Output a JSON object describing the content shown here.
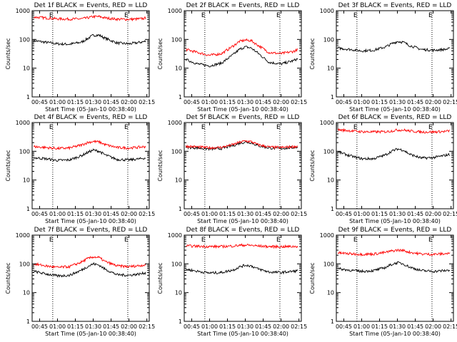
{
  "figure": {
    "xlabel": "Start Time (05-Jan-10 00:38:40)",
    "ylabel": "Counts/sec",
    "x_tick_labels": [
      "00:45",
      "01:00",
      "01:15",
      "01:30",
      "01:45",
      "02:00",
      "02:15"
    ],
    "y_tick_labels": [
      "1",
      "10",
      "100",
      "1000"
    ],
    "marker_label": "E",
    "colors": {
      "events": "#000000",
      "lld": "#ff0000"
    }
  },
  "chart_data": [
    {
      "type": "line",
      "title": "Det 1f BLACK = Events, RED = LLD",
      "x_range_minutes": [
        38.7,
        137
      ],
      "ylim": [
        1,
        1000
      ],
      "yscale": "log",
      "grid": false,
      "x": [
        40,
        50,
        60,
        70,
        80,
        85,
        90,
        95,
        100,
        110,
        120,
        130,
        135
      ],
      "series": [
        {
          "name": "Events",
          "color": "#000000",
          "values": [
            90,
            80,
            70,
            68,
            80,
            105,
            140,
            140,
            110,
            75,
            70,
            80,
            88
          ]
        },
        {
          "name": "LLD",
          "color": "#ff0000",
          "values": [
            600,
            560,
            520,
            510,
            520,
            560,
            620,
            620,
            560,
            505,
            500,
            520,
            560
          ]
        }
      ],
      "markers": [
        {
          "label": "E",
          "x": 56
        },
        {
          "label": "E",
          "x": 119
        }
      ]
    },
    {
      "type": "line",
      "title": "Det 2f BLACK = Events, RED = LLD",
      "x_range_minutes": [
        38.7,
        137
      ],
      "ylim": [
        1,
        1000
      ],
      "yscale": "log",
      "grid": false,
      "x": [
        40,
        50,
        60,
        70,
        80,
        85,
        90,
        95,
        100,
        110,
        120,
        130,
        135
      ],
      "series": [
        {
          "name": "Events",
          "color": "#000000",
          "values": [
            20,
            14,
            12,
            15,
            30,
            45,
            55,
            50,
            35,
            16,
            14,
            18,
            22
          ]
        },
        {
          "name": "LLD",
          "color": "#ff0000",
          "values": [
            45,
            35,
            28,
            32,
            60,
            85,
            95,
            90,
            65,
            35,
            32,
            38,
            45
          ]
        }
      ],
      "markers": [
        {
          "label": "E",
          "x": 56
        },
        {
          "label": "E",
          "x": 119
        }
      ]
    },
    {
      "type": "line",
      "title": "Det 3f BLACK = Events, RED = LLD",
      "x_range_minutes": [
        38.7,
        137
      ],
      "ylim": [
        1,
        1000
      ],
      "yscale": "log",
      "grid": false,
      "x": [
        40,
        50,
        60,
        70,
        80,
        85,
        90,
        95,
        100,
        110,
        120,
        130,
        135
      ],
      "series": [
        {
          "name": "Events",
          "color": "#000000",
          "values": [
            50,
            45,
            40,
            42,
            55,
            70,
            85,
            80,
            62,
            45,
            42,
            45,
            48
          ]
        }
      ],
      "markers": [
        {
          "label": "E",
          "x": 56
        },
        {
          "label": "E",
          "x": 119
        }
      ]
    },
    {
      "type": "line",
      "title": "Det 4f BLACK = Events, RED = LLD",
      "x_range_minutes": [
        38.7,
        137
      ],
      "ylim": [
        1,
        1000
      ],
      "yscale": "log",
      "grid": false,
      "x": [
        40,
        50,
        60,
        70,
        80,
        85,
        90,
        95,
        100,
        110,
        120,
        130,
        135
      ],
      "series": [
        {
          "name": "Events",
          "color": "#000000",
          "values": [
            60,
            55,
            48,
            50,
            70,
            90,
            110,
            100,
            75,
            52,
            50,
            55,
            60
          ]
        },
        {
          "name": "LLD",
          "color": "#ff0000",
          "values": [
            145,
            135,
            125,
            130,
            165,
            200,
            220,
            210,
            170,
            135,
            130,
            140,
            148
          ]
        }
      ],
      "markers": [
        {
          "label": "E",
          "x": 56
        },
        {
          "label": "E",
          "x": 119
        }
      ]
    },
    {
      "type": "line",
      "title": "Det 5f BLACK = Events, RED = LLD",
      "x_range_minutes": [
        38.7,
        137
      ],
      "ylim": [
        1,
        1000
      ],
      "yscale": "log",
      "grid": false,
      "x": [
        40,
        50,
        60,
        70,
        80,
        85,
        90,
        95,
        100,
        110,
        120,
        130,
        135
      ],
      "series": [
        {
          "name": "Events",
          "color": "#000000",
          "values": [
            140,
            130,
            120,
            125,
            160,
            190,
            210,
            200,
            160,
            130,
            125,
            135,
            140
          ]
        },
        {
          "name": "LLD",
          "color": "#ff0000",
          "values": [
            150,
            142,
            132,
            137,
            172,
            205,
            228,
            216,
            172,
            140,
            135,
            145,
            152
          ]
        }
      ],
      "markers": [
        {
          "label": "E",
          "x": 56
        },
        {
          "label": "E",
          "x": 119
        }
      ]
    },
    {
      "type": "line",
      "title": "Det 6f BLACK = Events, RED = LLD",
      "x_range_minutes": [
        38.7,
        137
      ],
      "ylim": [
        1,
        1000
      ],
      "yscale": "log",
      "grid": false,
      "x": [
        40,
        50,
        60,
        70,
        80,
        85,
        90,
        95,
        100,
        110,
        120,
        130,
        135
      ],
      "series": [
        {
          "name": "Events",
          "color": "#000000",
          "values": [
            95,
            70,
            55,
            55,
            75,
            100,
            120,
            110,
            80,
            58,
            60,
            72,
            80
          ]
        },
        {
          "name": "LLD",
          "color": "#ff0000",
          "values": [
            560,
            520,
            480,
            470,
            480,
            510,
            550,
            550,
            510,
            470,
            470,
            490,
            520
          ]
        }
      ],
      "markers": [
        {
          "label": "E",
          "x": 56
        },
        {
          "label": "E",
          "x": 119
        }
      ]
    },
    {
      "type": "line",
      "title": "Det 7f BLACK = Events, RED = LLD",
      "x_range_minutes": [
        38.7,
        137
      ],
      "ylim": [
        1,
        1000
      ],
      "yscale": "log",
      "grid": false,
      "x": [
        40,
        50,
        60,
        70,
        80,
        85,
        90,
        95,
        100,
        110,
        120,
        130,
        135
      ],
      "series": [
        {
          "name": "Events",
          "color": "#000000",
          "values": [
            55,
            45,
            38,
            40,
            60,
            80,
            100,
            90,
            65,
            42,
            40,
            45,
            50
          ]
        },
        {
          "name": "LLD",
          "color": "#ff0000",
          "values": [
            100,
            85,
            75,
            80,
            115,
            150,
            175,
            165,
            120,
            85,
            80,
            88,
            95
          ]
        }
      ],
      "markers": [
        {
          "label": "E",
          "x": 56
        },
        {
          "label": "E",
          "x": 119
        }
      ]
    },
    {
      "type": "line",
      "title": "Det 8f BLACK = Events, RED = LLD",
      "x_range_minutes": [
        38.7,
        137
      ],
      "ylim": [
        1,
        1000
      ],
      "yscale": "log",
      "grid": false,
      "x": [
        40,
        50,
        60,
        70,
        80,
        85,
        90,
        95,
        100,
        110,
        120,
        130,
        135
      ],
      "series": [
        {
          "name": "Events",
          "color": "#000000",
          "values": [
            65,
            55,
            48,
            50,
            62,
            78,
            90,
            85,
            68,
            52,
            50,
            55,
            58
          ]
        },
        {
          "name": "LLD",
          "color": "#ff0000",
          "values": [
            420,
            410,
            400,
            400,
            420,
            440,
            450,
            440,
            420,
            400,
            395,
            400,
            410
          ]
        }
      ],
      "markers": [
        {
          "label": "E",
          "x": 56
        },
        {
          "label": "E",
          "x": 119
        }
      ]
    },
    {
      "type": "line",
      "title": "Det 9f BLACK = Events, RED = LLD",
      "x_range_minutes": [
        38.7,
        137
      ],
      "ylim": [
        1,
        1000
      ],
      "yscale": "log",
      "grid": false,
      "x": [
        40,
        50,
        60,
        70,
        80,
        85,
        90,
        95,
        100,
        110,
        120,
        130,
        135
      ],
      "series": [
        {
          "name": "Events",
          "color": "#000000",
          "values": [
            68,
            60,
            55,
            58,
            75,
            95,
            110,
            100,
            78,
            58,
            55,
            58,
            62
          ]
        },
        {
          "name": "LLD",
          "color": "#ff0000",
          "values": [
            240,
            225,
            215,
            220,
            250,
            280,
            300,
            290,
            255,
            220,
            215,
            225,
            235
          ]
        }
      ],
      "markers": [
        {
          "label": "E",
          "x": 56
        },
        {
          "label": "E",
          "x": 119
        }
      ]
    }
  ]
}
